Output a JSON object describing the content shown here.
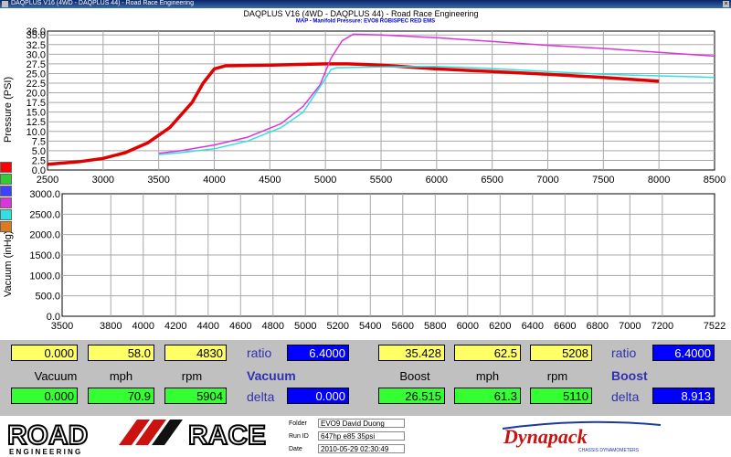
{
  "window": {
    "title": "DAQPLUS V16 (4WD - DAQPLUS 44) - Road Race Engineering"
  },
  "header": {
    "title": "DAQPLUS V16 (4WD - DAQPLUS 44) - Road Race Engineering",
    "subtitle": "MAP - Manifold Pressure: EVO8 ROBISPEC RED EMS"
  },
  "legend": {
    "colors": [
      "#ff0000",
      "#33cc33",
      "#4040ff",
      "#dd33dd",
      "#33e0e0",
      "#e07820"
    ]
  },
  "chart_data": [
    {
      "type": "line",
      "title": "MAP - Manifold Pressure: EVO8 ROBISPEC RED EMS",
      "xlabel": "",
      "ylabel": "Pressure (PSI)",
      "xlim": [
        2500,
        8500
      ],
      "ylim": [
        0,
        36
      ],
      "x_ticks": [
        "2500",
        "3000",
        "3500",
        "4000",
        "4500",
        "5000",
        "5500",
        "6000",
        "6500",
        "7000",
        "7500",
        "8000",
        "8500"
      ],
      "y_ticks": [
        "0.0",
        "2.5",
        "5.0",
        "7.5",
        "10.0",
        "12.5",
        "15.0",
        "17.5",
        "20.0",
        "22.5",
        "25.0",
        "27.5",
        "30.0",
        "32.5",
        "35.0",
        "36.0"
      ],
      "grid": true,
      "series": [
        {
          "color": "#e00000",
          "width": 3.5,
          "points": [
            [
              2500,
              1.5
            ],
            [
              2800,
              2.2
            ],
            [
              3000,
              3.0
            ],
            [
              3200,
              4.5
            ],
            [
              3400,
              7.0
            ],
            [
              3600,
              11.0
            ],
            [
              3800,
              17.5
            ],
            [
              3900,
              22.5
            ],
            [
              4000,
              26.2
            ],
            [
              4100,
              27.0
            ],
            [
              4500,
              27.2
            ],
            [
              5000,
              27.5
            ],
            [
              5200,
              27.5
            ],
            [
              5500,
              27.2
            ],
            [
              6000,
              26.2
            ],
            [
              6500,
              25.5
            ],
            [
              7000,
              24.8
            ],
            [
              7500,
              24.0
            ],
            [
              8000,
              23.0
            ]
          ]
        },
        {
          "color": "#dd33dd",
          "width": 1.5,
          "points": [
            [
              3500,
              4.3
            ],
            [
              3700,
              5.0
            ],
            [
              4000,
              6.5
            ],
            [
              4300,
              8.5
            ],
            [
              4600,
              12.0
            ],
            [
              4800,
              16.5
            ],
            [
              4950,
              22.0
            ],
            [
              5050,
              29.0
            ],
            [
              5150,
              33.5
            ],
            [
              5250,
              35.2
            ],
            [
              5500,
              35.0
            ],
            [
              6000,
              34.3
            ],
            [
              6500,
              33.3
            ],
            [
              7000,
              32.3
            ],
            [
              7500,
              31.5
            ],
            [
              8000,
              30.5
            ],
            [
              8500,
              29.5
            ]
          ]
        },
        {
          "color": "#33e0e0",
          "width": 1.5,
          "points": [
            [
              3500,
              4.0
            ],
            [
              3700,
              4.5
            ],
            [
              4000,
              5.5
            ],
            [
              4300,
              7.5
            ],
            [
              4600,
              11.0
            ],
            [
              4800,
              15.0
            ],
            [
              4950,
              21.5
            ],
            [
              5050,
              26.0
            ],
            [
              5100,
              26.5
            ],
            [
              5500,
              26.7
            ],
            [
              6000,
              26.8
            ],
            [
              6500,
              26.3
            ],
            [
              7000,
              25.5
            ],
            [
              7500,
              24.8
            ],
            [
              8000,
              24.4
            ],
            [
              8500,
              24.0
            ]
          ]
        }
      ]
    },
    {
      "type": "line",
      "title": "",
      "xlabel": "",
      "ylabel": "Vacuum (inHg)",
      "xlim": [
        3500,
        7522
      ],
      "ylim": [
        0,
        3000
      ],
      "x_ticks": [
        "3500",
        "3800",
        "4000",
        "4200",
        "4400",
        "4600",
        "4800",
        "5000",
        "5200",
        "5400",
        "5600",
        "5800",
        "6000",
        "6200",
        "6400",
        "6600",
        "6800",
        "7000",
        "7200",
        "7522"
      ],
      "y_ticks": [
        "0.0",
        "500.0",
        "1000.0",
        "1500.0",
        "2000.0",
        "2500.0",
        "3000.0"
      ],
      "grid": true,
      "series": []
    }
  ],
  "readouts": {
    "left": {
      "top": {
        "vacuum": "0.000",
        "mph": "58.0",
        "rpm": "4830"
      },
      "labels": {
        "vacuum": "Vacuum",
        "mph": "mph",
        "rpm": "rpm"
      },
      "bottom": {
        "vacuum": "0.000",
        "mph": "70.9",
        "rpm": "5904"
      },
      "ratio_label": "ratio",
      "ratio_value": "6.4000",
      "channel": "Vacuum",
      "delta_label": "delta",
      "delta_value": "0.000"
    },
    "right": {
      "top": {
        "boost": "35.428",
        "mph": "62.5",
        "rpm": "5208"
      },
      "labels": {
        "boost": "Boost",
        "mph": "mph",
        "rpm": "rpm"
      },
      "bottom": {
        "boost": "26.515",
        "mph": "61.3",
        "rpm": "5110"
      },
      "ratio_label": "ratio",
      "ratio_value": "6.4000",
      "channel": "Boost",
      "delta_label": "delta",
      "delta_value": "8.913"
    }
  },
  "footer": {
    "logo_text_1": "ROAD",
    "logo_text_2": "RACE",
    "logo_sub": "E N G I N E E R I N G",
    "folder_label": "Folder",
    "folder_value": "EVO9 David Duong",
    "runid_label": "Run ID",
    "runid_value": "647hp e85 35psi",
    "date_label": "Date",
    "date_value": "2010-05-29 02:30:49",
    "brand": "Dynapack",
    "brand_sub": "CHASSIS DYNAMOMETERS"
  }
}
